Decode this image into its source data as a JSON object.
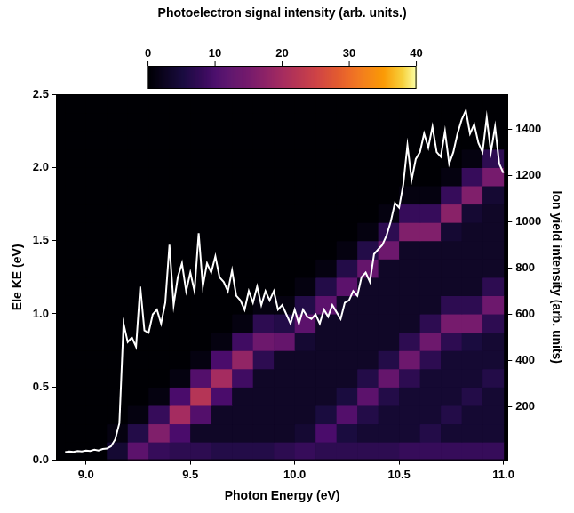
{
  "chart_data": {
    "type": "heatmap",
    "x_label": "Photon Energy (eV)",
    "y_label": "Ele KE (eV)",
    "y2_label": "Ion yield intensity (arb. units)",
    "xlim": [
      8.86,
      11.02
    ],
    "xticks": [
      {
        "value": 9.0,
        "label": "9.0"
      },
      {
        "value": 9.5,
        "label": "9.5"
      },
      {
        "value": 10.0,
        "label": "10.0"
      },
      {
        "value": 10.5,
        "label": "10.5"
      },
      {
        "value": 11.0,
        "label": "11.0"
      }
    ],
    "ylim": [
      0,
      2.5
    ],
    "yticks": [
      {
        "value": 0,
        "label": "0.0"
      },
      {
        "value": 0.5,
        "label": "0.5"
      },
      {
        "value": 1.0,
        "label": "1.0"
      },
      {
        "value": 1.5,
        "label": "1.5"
      },
      {
        "value": 2.0,
        "label": "2.0"
      },
      {
        "value": 2.5,
        "label": "2.5"
      }
    ],
    "y2lim": [
      -30,
      1550
    ],
    "y2ticks": [
      200,
      400,
      600,
      800,
      1000,
      1200,
      1400
    ],
    "grid": false,
    "colorbar": {
      "label": "Photoelectron signal intensity (arb. units.)",
      "range": [
        0,
        40
      ],
      "ticks": [
        0,
        10,
        20,
        30,
        40
      ]
    },
    "heatmap": {
      "x_edges": [
        8.9,
        9.0,
        9.1,
        9.2,
        9.3,
        9.4,
        9.5,
        9.6,
        9.7,
        9.8,
        9.9,
        10.0,
        10.1,
        10.2,
        10.3,
        10.4,
        10.5,
        10.6,
        10.7,
        10.8,
        10.9,
        11.0
      ],
      "y_edges": [
        0,
        0.125,
        0.25,
        0.375,
        0.5,
        0.625,
        0.75,
        0.875,
        1.0,
        1.125,
        1.25,
        1.375,
        1.5,
        1.625,
        1.75,
        1.875,
        2.0,
        2.125,
        2.25,
        2.375,
        2.5
      ],
      "z": [
        [
          0,
          0,
          4,
          12,
          8,
          7,
          7,
          6,
          6,
          6,
          7,
          8,
          7,
          7,
          7,
          7,
          8,
          8,
          8,
          8,
          8
        ],
        [
          0,
          0,
          1,
          6,
          16,
          10,
          3,
          3,
          3,
          3,
          3,
          4,
          10,
          5,
          4,
          4,
          4,
          6,
          4,
          4,
          4
        ],
        [
          0,
          0,
          0,
          1,
          8,
          20,
          11,
          3,
          3,
          3,
          3,
          3,
          5,
          11,
          6,
          4,
          4,
          4,
          6,
          4,
          4
        ],
        [
          0,
          0,
          0,
          0,
          1,
          10,
          22,
          10,
          3,
          3,
          3,
          3,
          3,
          5,
          12,
          6,
          4,
          4,
          4,
          6,
          4
        ],
        [
          0,
          0,
          0,
          0,
          0,
          1,
          11,
          20,
          9,
          3,
          3,
          3,
          3,
          3,
          6,
          13,
          7,
          4,
          4,
          4,
          6
        ],
        [
          0,
          0,
          0,
          0,
          0,
          0,
          1,
          10,
          18,
          7,
          3,
          3,
          3,
          3,
          3,
          6,
          14,
          7,
          4,
          4,
          4
        ],
        [
          0,
          0,
          0,
          0,
          0,
          0,
          0,
          1,
          9,
          14,
          13,
          4,
          3,
          3,
          3,
          3,
          7,
          14,
          7,
          5,
          4
        ],
        [
          0,
          0,
          0,
          0,
          0,
          0,
          0,
          0,
          1,
          7,
          6,
          12,
          3,
          3,
          3,
          3,
          3,
          7,
          15,
          15,
          7
        ],
        [
          0,
          0,
          0,
          0,
          0,
          0,
          0,
          0,
          0,
          1,
          1,
          6,
          12,
          3,
          3,
          3,
          3,
          3,
          7,
          7,
          14
        ],
        [
          0,
          0,
          0,
          0,
          0,
          0,
          0,
          0,
          0,
          0,
          0,
          1,
          6,
          12,
          3,
          3,
          3,
          3,
          3,
          3,
          7
        ],
        [
          0,
          0,
          0,
          0,
          0,
          0,
          0,
          0,
          0,
          0,
          0,
          0,
          1,
          6,
          13,
          3,
          3,
          3,
          3,
          3,
          3
        ],
        [
          0,
          0,
          0,
          0,
          0,
          0,
          0,
          0,
          0,
          0,
          0,
          0,
          0,
          1,
          6,
          14,
          3,
          3,
          3,
          3,
          3
        ],
        [
          0,
          0,
          0,
          0,
          0,
          0,
          0,
          0,
          0,
          0,
          0,
          0,
          0,
          0,
          1,
          7,
          16,
          16,
          4,
          3,
          3
        ],
        [
          0,
          0,
          0,
          0,
          0,
          0,
          0,
          0,
          0,
          0,
          0,
          0,
          0,
          0,
          0,
          1,
          8,
          8,
          17,
          4,
          3
        ],
        [
          0,
          0,
          0,
          0,
          0,
          0,
          0,
          0,
          0,
          0,
          0,
          0,
          0,
          0,
          0,
          0,
          1,
          1,
          8,
          16,
          4
        ],
        [
          0,
          0,
          0,
          0,
          0,
          0,
          0,
          0,
          0,
          0,
          0,
          0,
          0,
          0,
          0,
          0,
          0,
          0,
          1,
          8,
          15
        ],
        [
          0,
          0,
          0,
          0,
          0,
          0,
          0,
          0,
          0,
          0,
          0,
          0,
          0,
          0,
          0,
          0,
          0,
          0,
          0,
          1,
          7
        ],
        [
          0,
          0,
          0,
          0,
          0,
          0,
          0,
          0,
          0,
          0,
          0,
          0,
          0,
          0,
          0,
          0,
          0,
          0,
          0,
          0,
          0
        ],
        [
          0,
          0,
          0,
          0,
          0,
          0,
          0,
          0,
          0,
          0,
          0,
          0,
          0,
          0,
          0,
          0,
          0,
          0,
          0,
          0,
          0
        ],
        [
          0,
          0,
          0,
          0,
          0,
          0,
          0,
          0,
          0,
          0,
          0,
          0,
          0,
          0,
          0,
          0,
          0,
          0,
          0,
          0,
          0
        ]
      ]
    },
    "series": [
      {
        "type": "line",
        "color": "#ffffff",
        "axis": "y2",
        "x": [
          8.9,
          8.92,
          8.94,
          8.96,
          8.98,
          9.0,
          9.02,
          9.04,
          9.06,
          9.08,
          9.1,
          9.12,
          9.14,
          9.16,
          9.18,
          9.2,
          9.22,
          9.24,
          9.26,
          9.28,
          9.3,
          9.32,
          9.34,
          9.36,
          9.38,
          9.4,
          9.42,
          9.44,
          9.46,
          9.48,
          9.5,
          9.52,
          9.54,
          9.56,
          9.58,
          9.6,
          9.62,
          9.64,
          9.66,
          9.68,
          9.7,
          9.72,
          9.74,
          9.76,
          9.78,
          9.8,
          9.82,
          9.84,
          9.86,
          9.88,
          9.9,
          9.92,
          9.94,
          9.96,
          9.98,
          10.0,
          10.02,
          10.04,
          10.06,
          10.08,
          10.1,
          10.12,
          10.14,
          10.16,
          10.18,
          10.2,
          10.22,
          10.24,
          10.26,
          10.28,
          10.3,
          10.32,
          10.34,
          10.36,
          10.38,
          10.4,
          10.42,
          10.44,
          10.46,
          10.48,
          10.5,
          10.52,
          10.54,
          10.56,
          10.58,
          10.6,
          10.62,
          10.64,
          10.66,
          10.68,
          10.7,
          10.72,
          10.74,
          10.76,
          10.78,
          10.8,
          10.82,
          10.84,
          10.86,
          10.88,
          10.9,
          10.92,
          10.94,
          10.96,
          10.98,
          11.0
        ],
        "values": [
          5,
          8,
          6,
          10,
          8,
          12,
          10,
          15,
          12,
          18,
          20,
          30,
          60,
          130,
          560,
          480,
          500,
          460,
          720,
          530,
          520,
          600,
          620,
          560,
          650,
          900,
          640,
          760,
          820,
          700,
          780,
          700,
          950,
          720,
          820,
          780,
          850,
          760,
          740,
          700,
          790,
          680,
          660,
          620,
          700,
          650,
          720,
          640,
          700,
          660,
          700,
          620,
          640,
          600,
          560,
          620,
          560,
          620,
          590,
          580,
          600,
          560,
          620,
          590,
          640,
          610,
          580,
          650,
          660,
          700,
          680,
          760,
          780,
          740,
          860,
          880,
          900,
          940,
          1000,
          1080,
          1060,
          1160,
          1330,
          1180,
          1270,
          1300,
          1380,
          1320,
          1410,
          1300,
          1280,
          1390,
          1250,
          1300,
          1380,
          1440,
          1480,
          1380,
          1420,
          1340,
          1300,
          1450,
          1300,
          1410,
          1250,
          1210
        ]
      }
    ]
  }
}
